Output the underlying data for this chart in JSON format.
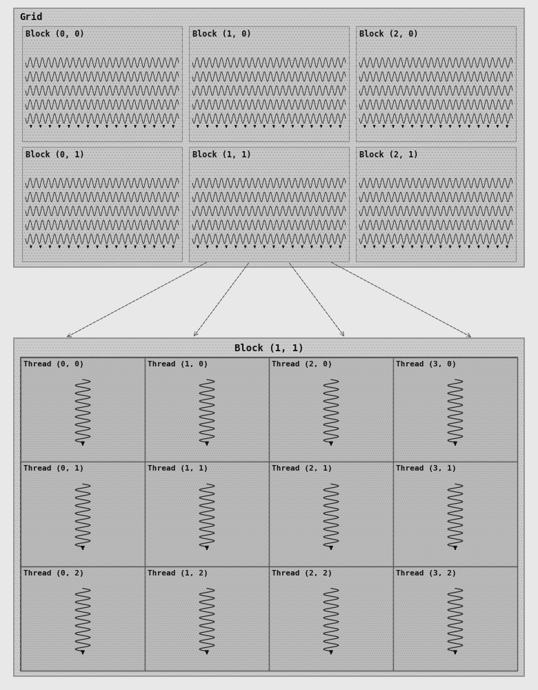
{
  "bg_color": "#e8e8e8",
  "grid_bg": "#d0d0d0",
  "block_bg": "#c0c0c0",
  "thread_bg": "#b8b8b8",
  "grid_label": "Grid",
  "block_label": "Block (1, 1)",
  "blocks": [
    [
      "Block (0, 0)",
      "Block (1, 0)",
      "Block (2, 0)"
    ],
    [
      "Block (0, 1)",
      "Block (1, 1)",
      "Block (2, 1)"
    ]
  ],
  "threads": [
    [
      "Thread (0, 0)",
      "Thread (1, 0)",
      "Thread (2, 0)",
      "Thread (3, 0)"
    ],
    [
      "Thread (0, 1)",
      "Thread (1, 1)",
      "Thread (2, 1)",
      "Thread (3, 1)"
    ],
    [
      "Thread (0, 2)",
      "Thread (1, 2)",
      "Thread (2, 2)",
      "Thread (3, 2)"
    ]
  ],
  "label_fontsize": 8.5,
  "grid_label_fontsize": 10,
  "block_label_fontsize": 10
}
